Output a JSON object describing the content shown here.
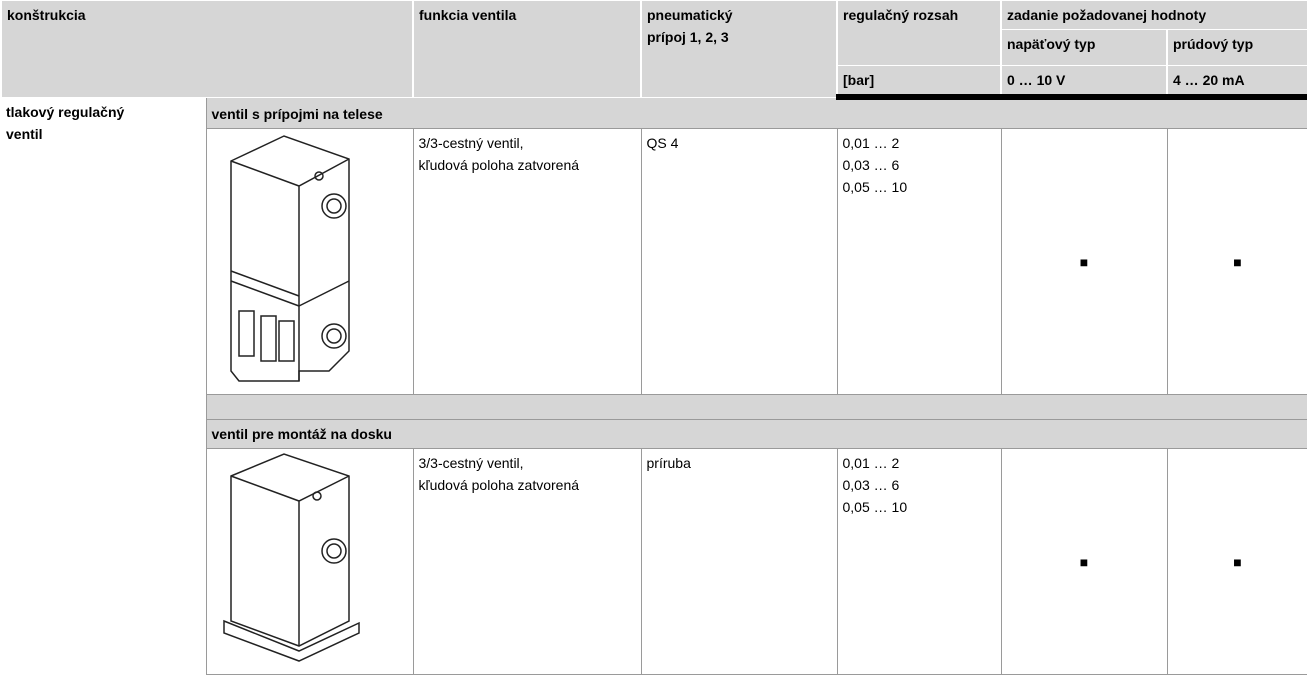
{
  "header": {
    "construction": "konštrukcia",
    "function": "funkcia ventila",
    "connection": [
      "pneumatický",
      "prípoj 1, 2, 3"
    ],
    "range": "regulačný rozsah",
    "range_unit": "[bar]",
    "setpoint": "zadanie požadovanej hodnoty",
    "voltage": "napäťový typ",
    "voltage_range": "0 … 10 V",
    "current": "prúdový typ",
    "current_range": "4 … 20 mA"
  },
  "group": [
    "tlakový regulačný",
    "ventil"
  ],
  "sections": [
    {
      "title": "ventil s prípojmi na telese",
      "function": [
        "3/3-cestný ventil,",
        "kľudová poloha zatvorená"
      ],
      "connection": "QS 4",
      "ranges": [
        "0,01 … 2",
        "0,03 … 6",
        "0,05 … 10"
      ],
      "voltage": "■",
      "current": "■"
    },
    {
      "title": "ventil pre montáž na dosku",
      "function": [
        "3/3-cestný ventil,",
        "kľudová poloha zatvorená"
      ],
      "connection": "príruba",
      "ranges": [
        "0,01 … 2",
        "0,03 … 6",
        "0,05 … 10"
      ],
      "voltage": "■",
      "current": "■"
    }
  ]
}
